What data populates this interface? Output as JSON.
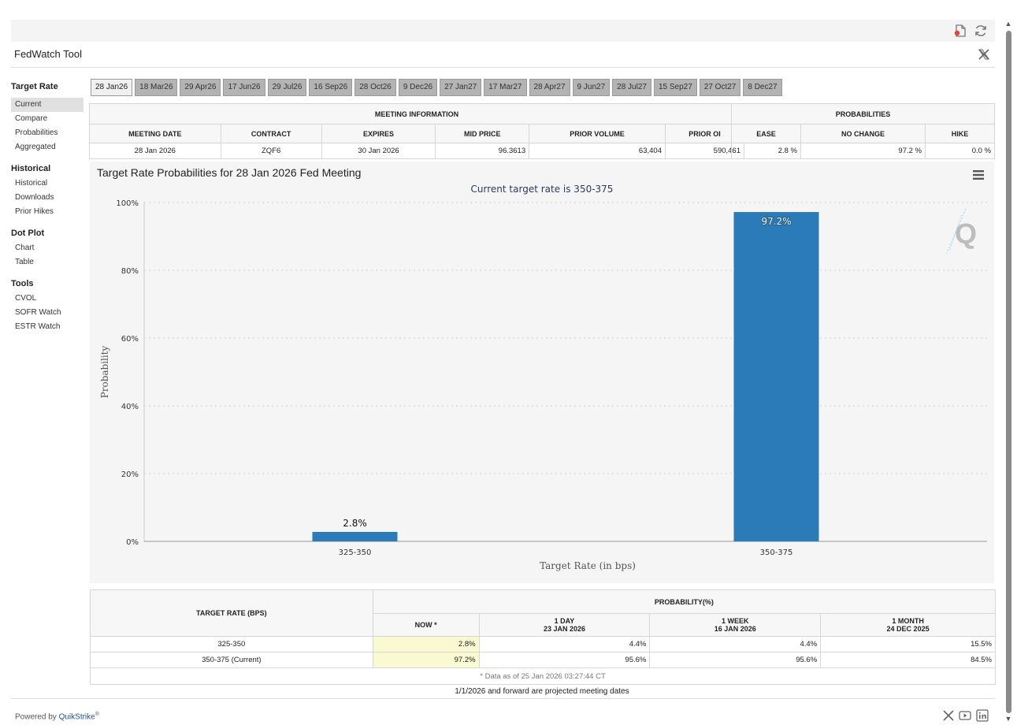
{
  "app": {
    "title": "FedWatch Tool"
  },
  "toolbar": {
    "icons": [
      "pdf-icon",
      "refresh-icon"
    ]
  },
  "sidebar": {
    "sections": [
      {
        "label": "Target Rate",
        "items": [
          "Current",
          "Compare",
          "Probabilities",
          "Aggregated"
        ]
      },
      {
        "label": "Historical",
        "items": [
          "Historical",
          "Downloads",
          "Prior Hikes"
        ]
      },
      {
        "label": "Dot Plot",
        "items": [
          "Chart",
          "Table"
        ]
      },
      {
        "label": "Tools",
        "items": [
          "CVOL",
          "SOFR Watch",
          "ESTR Watch"
        ]
      }
    ],
    "active": "Current"
  },
  "tabs": [
    "28 Jan26",
    "18 Mar26",
    "29 Apr26",
    "17 Jun26",
    "29 Jul26",
    "16 Sep26",
    "28 Oct26",
    "9 Dec26",
    "27 Jan27",
    "17 Mar27",
    "28 Apr27",
    "9 Jun27",
    "28 Jul27",
    "15 Sep27",
    "27 Oct27",
    "8 Dec27"
  ],
  "active_tab": "28 Jan26",
  "meeting_info": {
    "heading": "MEETING INFORMATION",
    "headers": [
      "MEETING DATE",
      "CONTRACT",
      "EXPIRES",
      "MID PRICE",
      "PRIOR VOLUME",
      "PRIOR OI"
    ],
    "row": [
      "28 Jan 2026",
      "ZQF6",
      "30 Jan 2026",
      "96.3613",
      "63,404",
      "590,461"
    ]
  },
  "probabilities": {
    "heading": "PROBABILITIES",
    "headers": [
      "EASE",
      "NO CHANGE",
      "HIKE"
    ],
    "row": [
      "2.8 %",
      "97.2 %",
      "0.0 %"
    ]
  },
  "chart": {
    "title": "Target Rate Probabilities for 28 Jan 2026 Fed Meeting",
    "subtitle": "Current target rate is 350-375"
  },
  "chart_data": {
    "type": "bar",
    "title": "Target Rate Probabilities for 28 Jan 2026 Fed Meeting",
    "subtitle": "Current target rate is 350-375",
    "categories": [
      "325-350",
      "350-375"
    ],
    "values": [
      2.8,
      97.2
    ],
    "data_labels": [
      "2.8%",
      "97.2%"
    ],
    "xlabel": "Target Rate (in bps)",
    "ylabel": "Probability",
    "ylim": [
      0,
      100
    ],
    "yticks": [
      "0%",
      "20%",
      "40%",
      "60%",
      "80%",
      "100%"
    ],
    "grid": true,
    "bar_color": "#2b7bb9"
  },
  "prob_table": {
    "col_target": "TARGET RATE (BPS)",
    "col_prob": "PROBABILITY(%)",
    "sub_headers": [
      {
        "line1": "NOW *",
        "line2": ""
      },
      {
        "line1": "1 DAY",
        "line2": "23 JAN 2026"
      },
      {
        "line1": "1 WEEK",
        "line2": "16 JAN 2026"
      },
      {
        "line1": "1 MONTH",
        "line2": "24 DEC 2025"
      }
    ],
    "rows": [
      [
        "325-350",
        "2.8%",
        "4.4%",
        "4.4%",
        "15.5%"
      ],
      [
        "350-375 (Current)",
        "97.2%",
        "95.6%",
        "95.6%",
        "84.5%"
      ]
    ],
    "note": "* Data as of 25 Jan 2026 03:27:44 CT"
  },
  "projected_note": "1/1/2026 and forward are projected meeting dates",
  "footer": {
    "powered_by": "Powered by",
    "brand": "QuikStrike",
    "reg": "®"
  }
}
